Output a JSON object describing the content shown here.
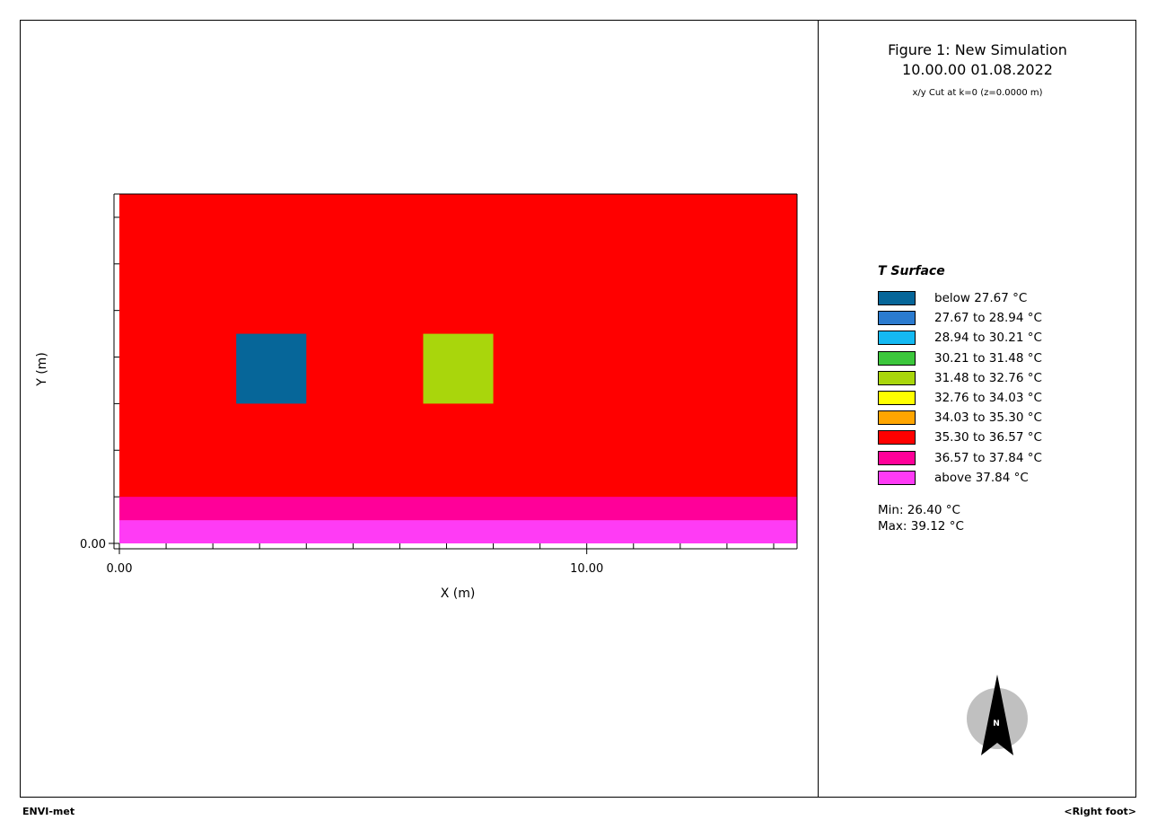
{
  "header": {
    "title": "Figure 1: New Simulation",
    "datetime": "10.00.00 01.08.2022",
    "subtitle": "x/y Cut at k=0 (z=0.0000 m)"
  },
  "legend": {
    "title": "T Surface",
    "items": [
      {
        "label": "below 27.67 °C",
        "color": "#066699"
      },
      {
        "label": "27.67 to 28.94 °C",
        "color": "#2B7BCF"
      },
      {
        "label": "28.94 to 30.21 °C",
        "color": "#14B9F2"
      },
      {
        "label": "30.21 to 31.48 °C",
        "color": "#3CC73C"
      },
      {
        "label": "31.48 to 32.76 °C",
        "color": "#A9D60C"
      },
      {
        "label": "32.76 to 34.03 °C",
        "color": "#FFFF00"
      },
      {
        "label": "34.03 to 35.30 °C",
        "color": "#FFA500"
      },
      {
        "label": "35.30 to 36.57 °C",
        "color": "#FF0000"
      },
      {
        "label": "36.57 to 37.84 °C",
        "color": "#FF0099"
      },
      {
        "label": "above 37.84 °C",
        "color": "#FF3BF5"
      }
    ]
  },
  "stats": {
    "min_label": "Min: 26.40 °C",
    "max_label": "Max: 39.12 °C"
  },
  "footer": {
    "left": "ENVI-met",
    "right": "<Right foot>"
  },
  "compass": {
    "label": "N"
  },
  "chart_data": {
    "type": "heatmap",
    "xlabel": "X (m)",
    "ylabel": "Y (m)",
    "xlim": [
      0,
      14.5
    ],
    "ylim": [
      0,
      7.5
    ],
    "xticks": [
      0,
      10
    ],
    "xtick_labels": [
      "0.00",
      "10.00"
    ],
    "yticks": [
      0
    ],
    "ytick_labels": [
      "0.00"
    ],
    "background_class": "35.30 to 36.57 °C",
    "regions": [
      {
        "x": [
          0,
          14.5
        ],
        "y": [
          0,
          0.5
        ],
        "class": "above 37.84 °C",
        "color": "#FF3BF5"
      },
      {
        "x": [
          0,
          14.5
        ],
        "y": [
          0.5,
          1.0
        ],
        "class": "36.57 to 37.84 °C",
        "color": "#FF0099"
      },
      {
        "x": [
          2.5,
          4.0
        ],
        "y": [
          3.0,
          4.5
        ],
        "class": "below 27.67 °C",
        "color": "#066699"
      },
      {
        "x": [
          6.5,
          8.0
        ],
        "y": [
          3.0,
          4.5
        ],
        "class": "31.48 to 32.76 °C",
        "color": "#A9D60C"
      }
    ],
    "background_color": "#FF0000"
  }
}
